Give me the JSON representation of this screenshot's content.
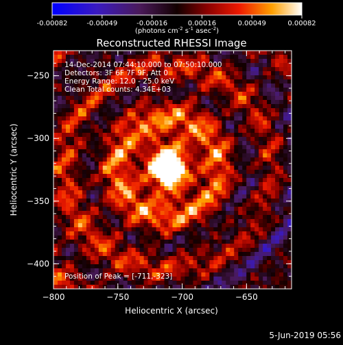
{
  "colorbar": {
    "ticks": [
      "-0.00082",
      "-0.00049",
      "-0.00016",
      "0.00016",
      "0.00049",
      "0.00082"
    ],
    "units": "(photons cm",
    "units_sup1": "-2",
    "units_mid": " s",
    "units_sup2": "-1",
    "units_mid2": " asec",
    "units_sup3": "-2",
    "units_end": ")"
  },
  "info": {
    "line1": "14-Dec-2014 07:44:10.000 to 07:50:10.000",
    "line2": "Detectors: 3F 6F 7F 9F, Att 0",
    "line3": "Energy Range: 12.0 - 25.0 keV",
    "line4": "Clean     Total counts: 4.34E+03",
    "peak": "Position of Peak = [-711,-323]"
  },
  "footer": {
    "date": "5-Jun-2019 05:56"
  },
  "chart_data": {
    "type": "heatmap",
    "title": "Reconstructed RHESSI Image",
    "xlabel": "Heliocentric X (arcsec)",
    "ylabel": "Heliocentric Y (arcsec)",
    "xlim": [
      -800,
      -615
    ],
    "ylim": [
      -420,
      -230
    ],
    "x_ticks": [
      -800,
      -750,
      -700,
      -650
    ],
    "y_ticks": [
      -250,
      -300,
      -350,
      -400
    ],
    "x_tick_labels": [
      "−800",
      "−750",
      "−700",
      "−650"
    ],
    "y_tick_labels": [
      "−250",
      "−300",
      "−350",
      "−400"
    ],
    "peak": {
      "x": -711,
      "y": -323
    },
    "colorbar_range": [
      -0.00082,
      0.00082
    ],
    "colormap": "blue-purple-red-yellow-white"
  }
}
